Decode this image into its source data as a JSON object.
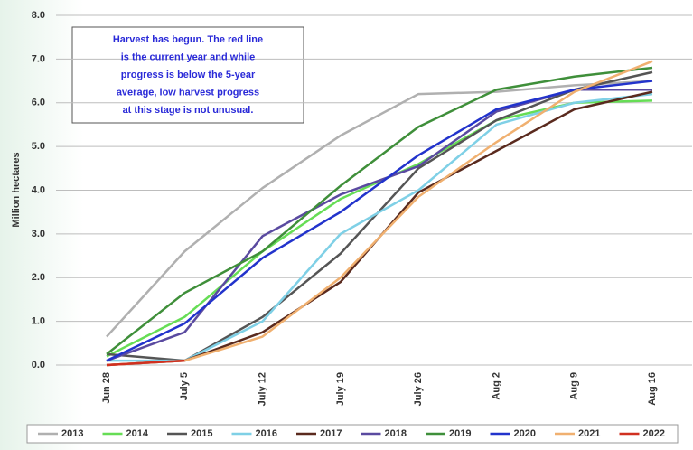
{
  "chart_data": {
    "type": "line",
    "y_axis_label": "Million hectares",
    "annotation": [
      "Harvest has begun. The red line",
      "is the current year and while",
      "progress is below the 5-year",
      "average, low harvest progress",
      "at this stage is not unusual."
    ],
    "categories": [
      "Jun 28",
      "July 5",
      "July 12",
      "July 19",
      "July 26",
      "Aug 2",
      "Aug 9",
      "Aug 16"
    ],
    "ylim": [
      0,
      8
    ],
    "yticks": [
      {
        "value": 0,
        "label": "0.0"
      },
      {
        "value": 1,
        "label": "1.0"
      },
      {
        "value": 2,
        "label": "2.0"
      },
      {
        "value": 3,
        "label": "3.0"
      },
      {
        "value": 4,
        "label": "4.0"
      },
      {
        "value": 5,
        "label": "5.0"
      },
      {
        "value": 6,
        "label": "6.0"
      },
      {
        "value": 7,
        "label": "7.0"
      },
      {
        "value": 8,
        "label": "8.0"
      }
    ],
    "grid": true,
    "legend": "bottom",
    "series": [
      {
        "name": "2013",
        "color": "#b0b0b0",
        "values": [
          0.65,
          2.6,
          4.05,
          5.25,
          6.2,
          6.25,
          6.4,
          6.5
        ]
      },
      {
        "name": "2014",
        "color": "#66dd55",
        "values": [
          0.2,
          1.1,
          2.6,
          3.8,
          4.6,
          5.6,
          6.0,
          6.05
        ]
      },
      {
        "name": "2015",
        "color": "#555555",
        "values": [
          0.25,
          0.1,
          1.1,
          2.55,
          4.5,
          5.6,
          6.3,
          6.7
        ]
      },
      {
        "name": "2016",
        "color": "#7fd0e6",
        "values": [
          0.1,
          0.1,
          1.0,
          3.0,
          4.0,
          5.5,
          6.0,
          6.2
        ]
      },
      {
        "name": "2017",
        "color": "#5a2a1e",
        "values": [
          0.0,
          0.1,
          0.75,
          1.9,
          3.95,
          4.9,
          5.85,
          6.25
        ]
      },
      {
        "name": "2018",
        "color": "#5a4aa0",
        "values": [
          0.1,
          0.75,
          2.95,
          3.9,
          4.55,
          5.8,
          6.3,
          6.3
        ]
      },
      {
        "name": "2019",
        "color": "#3f8f3a",
        "values": [
          0.25,
          1.65,
          2.6,
          4.1,
          5.45,
          6.3,
          6.6,
          6.8
        ]
      },
      {
        "name": "2020",
        "color": "#2233cc",
        "values": [
          0.1,
          0.95,
          2.45,
          3.5,
          4.8,
          5.85,
          6.3,
          6.5
        ]
      },
      {
        "name": "2021",
        "color": "#f0b070",
        "values": [
          0.0,
          0.1,
          0.65,
          2.0,
          3.85,
          5.1,
          6.25,
          6.95
        ]
      },
      {
        "name": "2022",
        "color": "#d03020",
        "values": [
          0.0,
          0.1,
          null,
          null,
          null,
          null,
          null,
          null
        ]
      }
    ]
  }
}
